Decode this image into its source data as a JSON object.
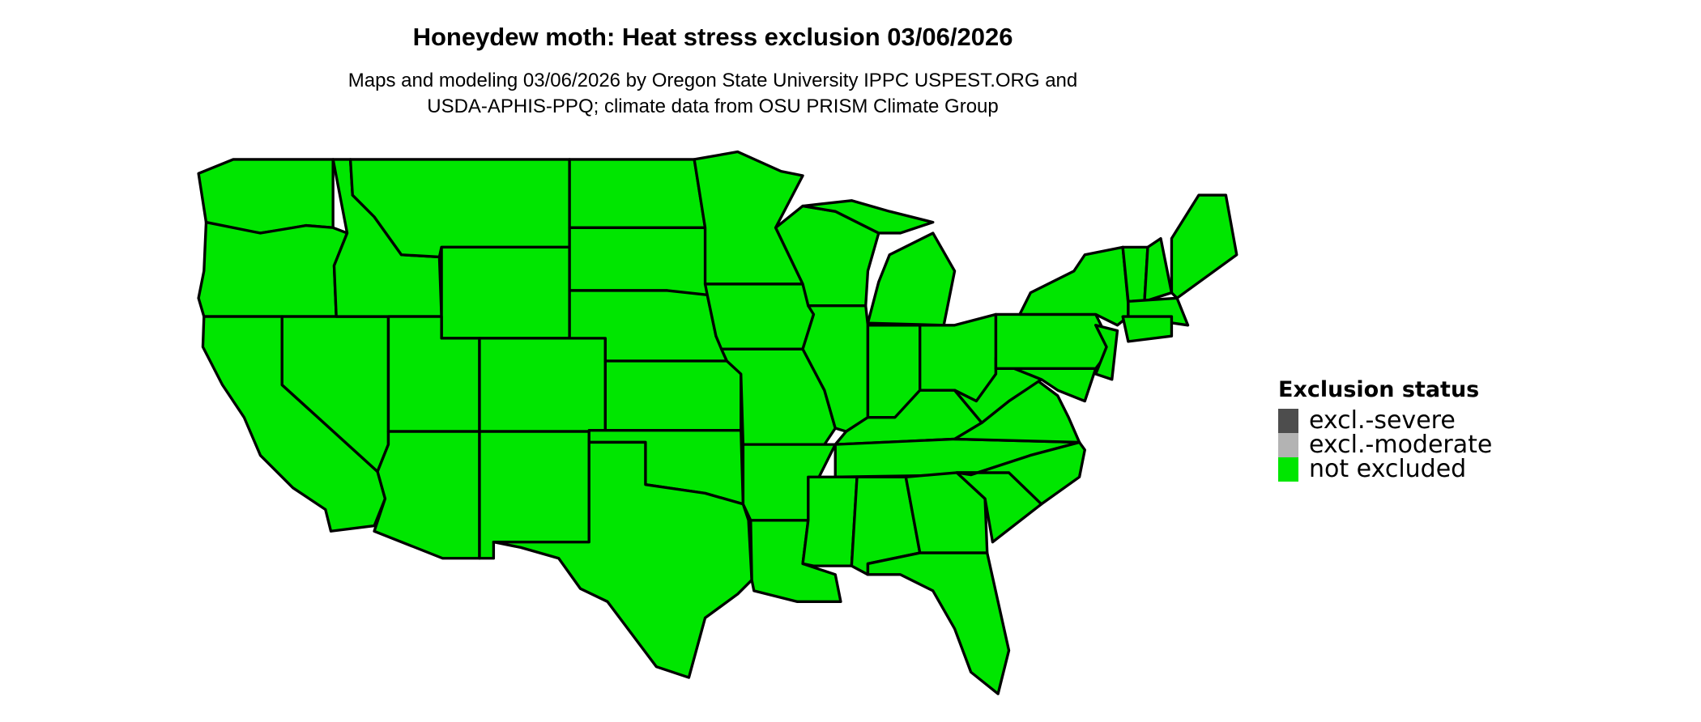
{
  "title": "Honeydew moth: Heat stress exclusion 03/06/2026",
  "subtitle_line1": "Maps and modeling 03/06/2026 by Oregon State University IPPC USPEST.ORG and",
  "subtitle_line2": "USDA-APHIS-PPQ; climate data from OSU PRISM Climate Group",
  "legend": {
    "title": "Exclusion status",
    "items": [
      {
        "label": "excl.-severe",
        "color": "#4d4d4d"
      },
      {
        "label": "excl.-moderate",
        "color": "#b3b3b3"
      },
      {
        "label": "not excluded",
        "color": "#00e600"
      }
    ]
  },
  "map": {
    "fill_status": "not excluded",
    "fill_color": "#00e600",
    "border_color": "#000000"
  }
}
